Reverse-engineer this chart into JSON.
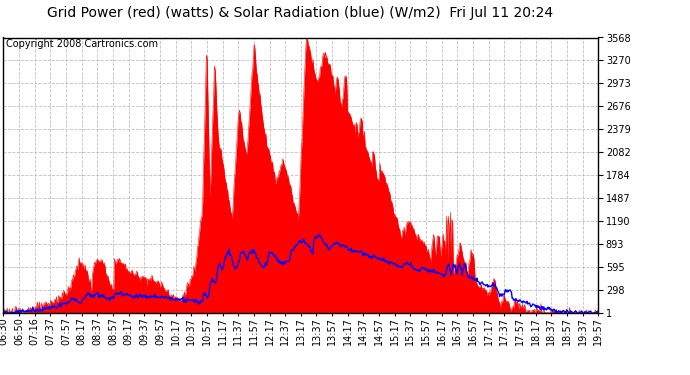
{
  "title": "Grid Power (red) (watts) & Solar Radiation (blue) (W/m2)  Fri Jul 11 20:24",
  "copyright": "Copyright 2008 Cartronics.com",
  "background_color": "#ffffff",
  "plot_bg_color": "#ffffff",
  "grid_color": "#c0c0c0",
  "red_color": "#ff0000",
  "blue_color": "#0000ff",
  "ylim": [
    0.9,
    3567.6
  ],
  "yticks": [
    0.9,
    298.2,
    595.4,
    892.6,
    1189.8,
    1487.0,
    1784.3,
    2081.5,
    2378.7,
    2675.9,
    2973.1,
    3270.3,
    3567.6
  ],
  "xtick_labels": [
    "06:30",
    "06:50",
    "07:16",
    "07:37",
    "07:57",
    "08:17",
    "08:37",
    "08:57",
    "09:17",
    "09:37",
    "09:57",
    "10:17",
    "10:37",
    "10:57",
    "11:17",
    "11:37",
    "11:57",
    "12:17",
    "12:37",
    "13:17",
    "13:37",
    "13:57",
    "14:17",
    "14:37",
    "14:57",
    "15:17",
    "15:37",
    "15:57",
    "16:17",
    "16:37",
    "16:57",
    "17:17",
    "17:37",
    "17:57",
    "18:17",
    "18:37",
    "18:57",
    "19:37",
    "19:57"
  ],
  "title_fontsize": 10,
  "copyright_fontsize": 7,
  "tick_fontsize": 7
}
